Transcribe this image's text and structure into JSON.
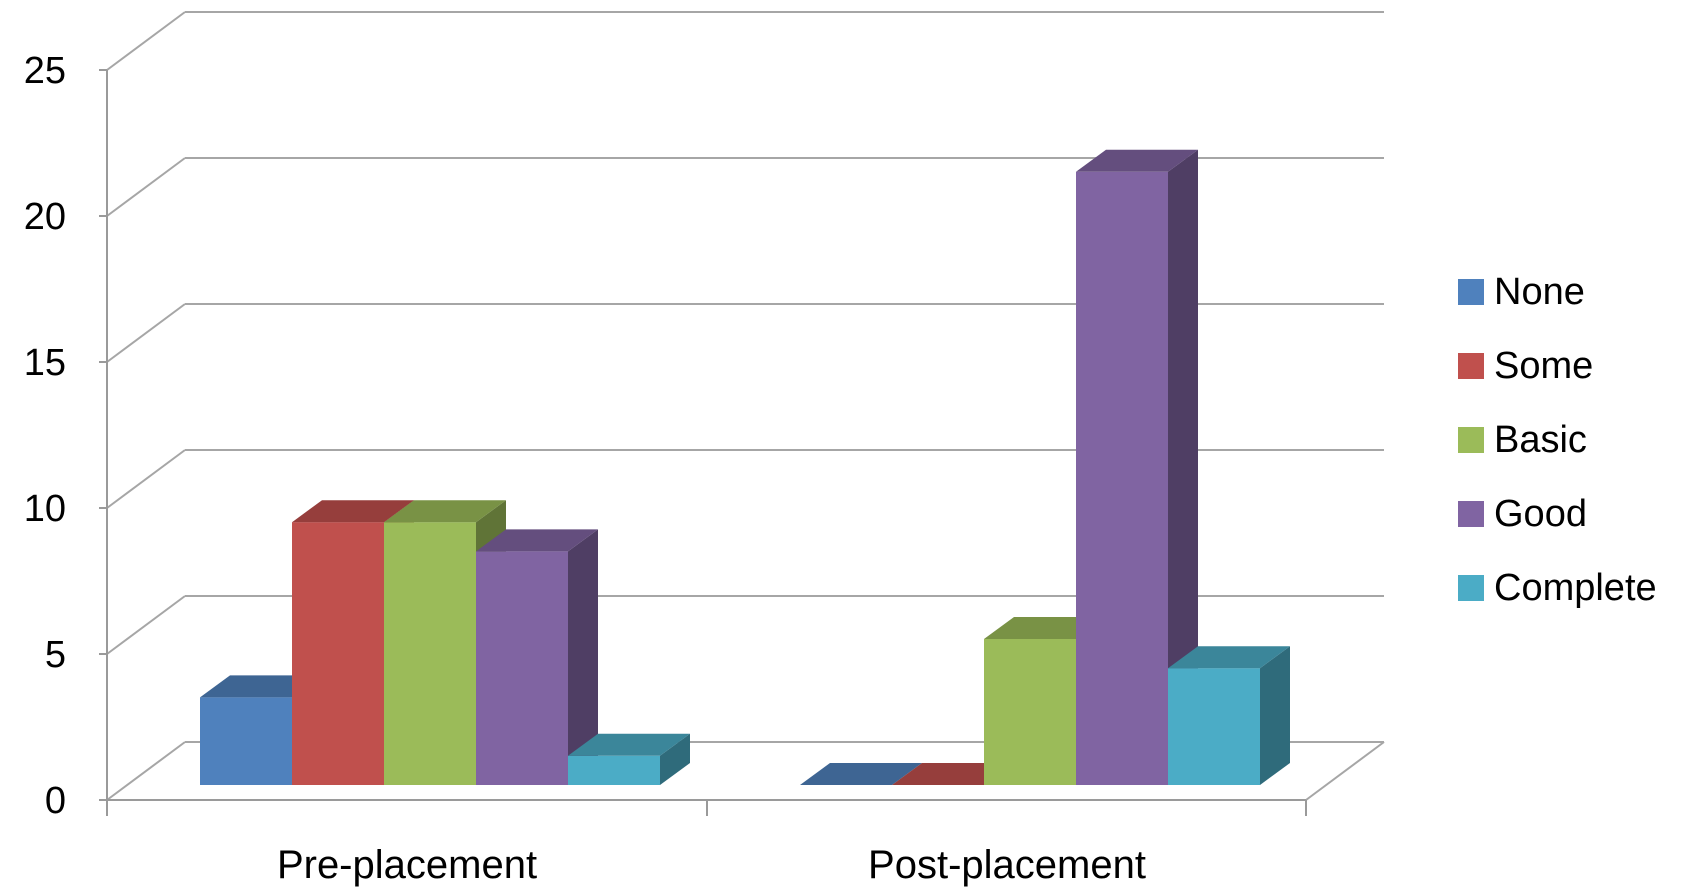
{
  "chart_data": {
    "type": "bar",
    "style": "3d-clustered-column",
    "title": "",
    "xlabel": "",
    "ylabel": "",
    "categories": [
      "Pre-placement",
      "Post-placement"
    ],
    "series": [
      {
        "name": "None",
        "values": [
          3,
          0
        ],
        "color": "#4f81bd"
      },
      {
        "name": "Some",
        "values": [
          9,
          0
        ],
        "color": "#c0504d"
      },
      {
        "name": "Basic",
        "values": [
          9,
          5
        ],
        "color": "#9bbb59"
      },
      {
        "name": "Good",
        "values": [
          8,
          21
        ],
        "color": "#8064a2"
      },
      {
        "name": "Complete",
        "values": [
          1,
          4
        ],
        "color": "#4bacc6"
      }
    ],
    "ylim": [
      0,
      25
    ],
    "yticks": [
      0,
      5,
      10,
      15,
      20,
      25
    ],
    "ytick_labels": [
      "0",
      "5",
      "10",
      "15",
      "20",
      "25"
    ],
    "grid": true,
    "legend_position": "right"
  }
}
